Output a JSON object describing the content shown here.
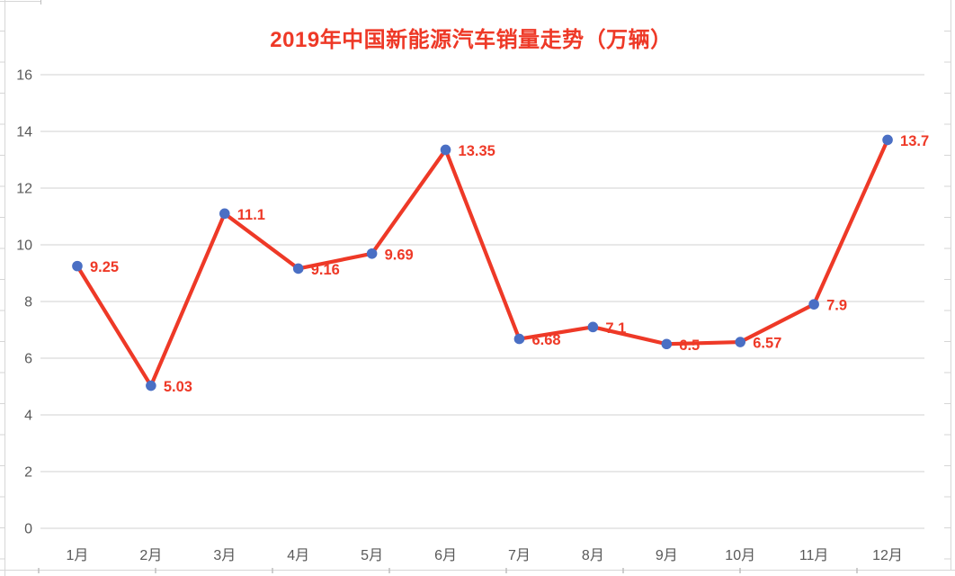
{
  "chart_data": {
    "type": "line",
    "title": "2019年中国新能源汽车销量走势（万辆）",
    "categories": [
      "1月",
      "2月",
      "3月",
      "4月",
      "5月",
      "6月",
      "7月",
      "8月",
      "9月",
      "10月",
      "11月",
      "12月"
    ],
    "values": [
      9.25,
      5.03,
      11.1,
      9.16,
      9.69,
      13.35,
      6.68,
      7.1,
      6.5,
      6.57,
      7.9,
      13.7
    ],
    "data_labels": [
      "9.25",
      "5.03",
      "11.1",
      "9.16",
      "9.69",
      "13.35",
      "6.68",
      "7.1",
      "6.5",
      "6.57",
      "7.9",
      "13.7"
    ],
    "xlabel": "",
    "ylabel": "",
    "ylim": [
      0,
      16
    ],
    "yticks": [
      0,
      2,
      4,
      6,
      8,
      10,
      12,
      14,
      16
    ],
    "grid": "horizontal",
    "legend_position": "none",
    "marker_shape": "circle"
  },
  "colors": {
    "line": "#ee3927",
    "marker": "#4a6fc4",
    "title": "#ee3927",
    "data_label": "#ee3927",
    "gridline": "#d9d9d9",
    "axis_text": "#595959",
    "sheet_line": "#d6d6d6",
    "sheet_tick": "#bdbdbd",
    "background": "#ffffff"
  }
}
